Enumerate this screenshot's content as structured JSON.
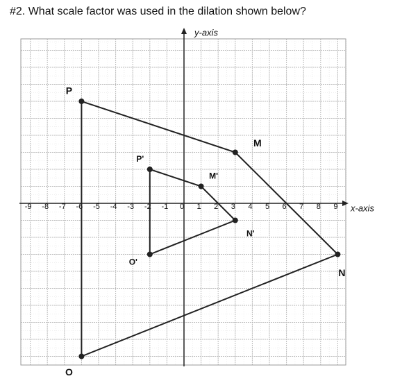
{
  "question": "#2.  What scale factor was used in the dilation shown below?",
  "y_axis_label": "y-axis",
  "x_axis_label": "x-axis",
  "x_tick_labels": [
    -9,
    -8,
    -7,
    -6,
    -5,
    -4,
    -3,
    -2,
    -1,
    0,
    1,
    2,
    3,
    4,
    5,
    6,
    7,
    8,
    9
  ],
  "figures": [
    {
      "vertices": [
        {
          "label": "P",
          "x": -6,
          "y": 6
        },
        {
          "label": "M",
          "x": 3,
          "y": 3
        },
        {
          "label": "N",
          "x": 9,
          "y": -3
        },
        {
          "label": "O",
          "x": -6,
          "y": -9
        }
      ]
    },
    {
      "vertices": [
        {
          "label": "P'",
          "x": -2,
          "y": 2
        },
        {
          "label": "M'",
          "x": 1,
          "y": 1
        },
        {
          "label": "N'",
          "x": 3,
          "y": -1
        },
        {
          "label": "O'",
          "x": -2,
          "y": -3
        }
      ]
    }
  ]
}
